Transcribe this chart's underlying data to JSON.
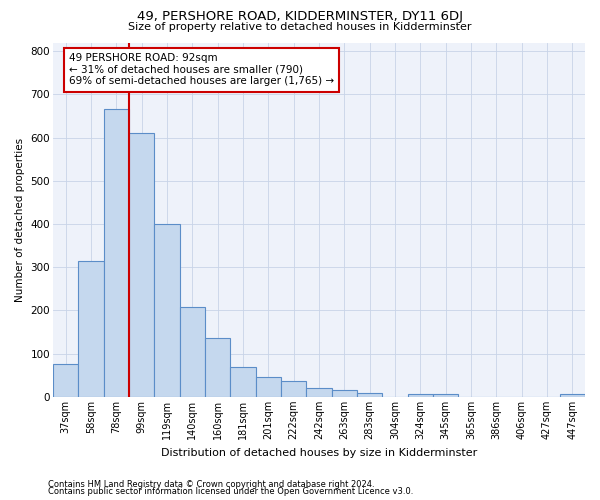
{
  "title": "49, PERSHORE ROAD, KIDDERMINSTER, DY11 6DJ",
  "subtitle": "Size of property relative to detached houses in Kidderminster",
  "xlabel": "Distribution of detached houses by size in Kidderminster",
  "ylabel": "Number of detached properties",
  "categories": [
    "37sqm",
    "58sqm",
    "78sqm",
    "99sqm",
    "119sqm",
    "140sqm",
    "160sqm",
    "181sqm",
    "201sqm",
    "222sqm",
    "242sqm",
    "263sqm",
    "283sqm",
    "304sqm",
    "324sqm",
    "345sqm",
    "365sqm",
    "386sqm",
    "406sqm",
    "427sqm",
    "447sqm"
  ],
  "values": [
    75,
    315,
    665,
    610,
    400,
    207,
    137,
    70,
    47,
    36,
    20,
    15,
    10,
    0,
    6,
    6,
    0,
    0,
    0,
    0,
    6
  ],
  "bar_color": "#c5d8ee",
  "bar_edge_color": "#5b8dc8",
  "red_line_color": "#cc0000",
  "annotation_text": "49 PERSHORE ROAD: 92sqm\n← 31% of detached houses are smaller (790)\n69% of semi-detached houses are larger (1,765) →",
  "annotation_box_color": "#ffffff",
  "annotation_box_edge": "#cc0000",
  "grid_color": "#c8d4e8",
  "background_color": "#eef2fa",
  "footer_line1": "Contains HM Land Registry data © Crown copyright and database right 2024.",
  "footer_line2": "Contains public sector information licensed under the Open Government Licence v3.0.",
  "ylim": [
    0,
    820
  ],
  "yticks": [
    0,
    100,
    200,
    300,
    400,
    500,
    600,
    700,
    800
  ]
}
